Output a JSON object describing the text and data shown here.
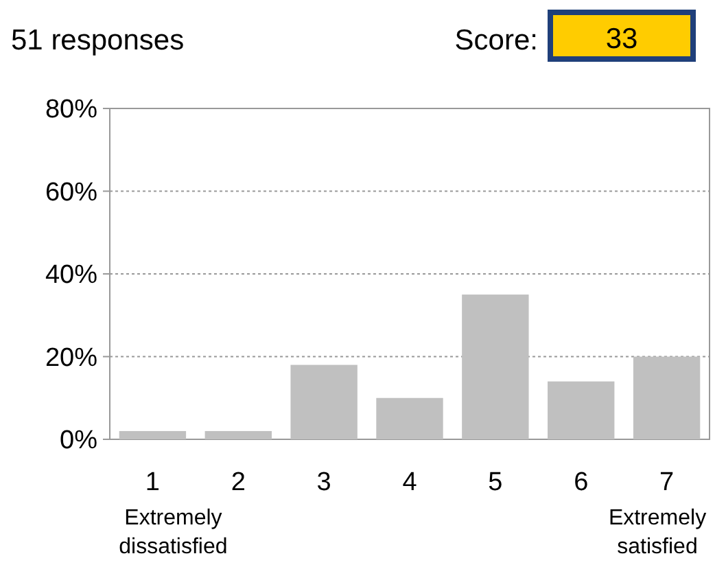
{
  "chart_data": {
    "type": "bar",
    "categories": [
      "1",
      "2",
      "3",
      "4",
      "5",
      "6",
      "7"
    ],
    "values": [
      2,
      2,
      18,
      10,
      35,
      14,
      20
    ],
    "color": "#c0c0c0",
    "ylim": [
      0,
      80
    ],
    "yticks": [
      {
        "value": 0,
        "label": "0%"
      },
      {
        "value": 20,
        "label": "20%"
      },
      {
        "value": 40,
        "label": "40%"
      },
      {
        "value": 60,
        "label": "60%"
      },
      {
        "value": 80,
        "label": "80%"
      }
    ],
    "grid": "y",
    "annotations": [
      "51 responses",
      "Score:",
      "33",
      "Extremely dissatisfied",
      "Extremely satisfied"
    ]
  }
}
